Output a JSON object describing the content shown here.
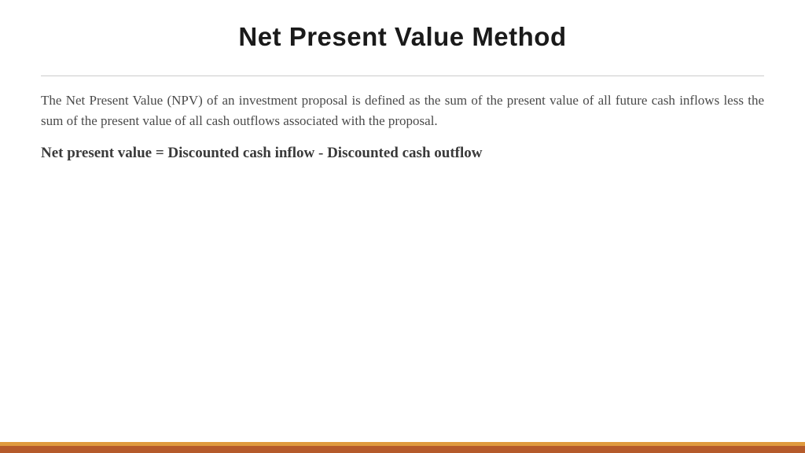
{
  "slide": {
    "title": "Net Present Value Method",
    "body_text": "The Net Present Value (NPV) of an investment proposal is defined as the sum of the present value of all future cash inflows less the sum of the present value of all cash outflows associated with the proposal.",
    "formula": "Net present value = Discounted cash inflow - Discounted cash outflow"
  },
  "styling": {
    "title_fontsize": 33,
    "title_color": "#1a1a1a",
    "title_font_family": "Arial",
    "title_font_weight": 900,
    "body_fontsize": 17,
    "body_color": "#4a4a4a",
    "formula_fontsize": 19,
    "formula_color": "#3a3a3a",
    "divider_color": "#cccccc",
    "background_color": "#ffffff",
    "footer_top_color": "#e09a3e",
    "footer_bottom_color": "#b55a2a",
    "footer_top_height": 5,
    "footer_bottom_height": 9
  }
}
